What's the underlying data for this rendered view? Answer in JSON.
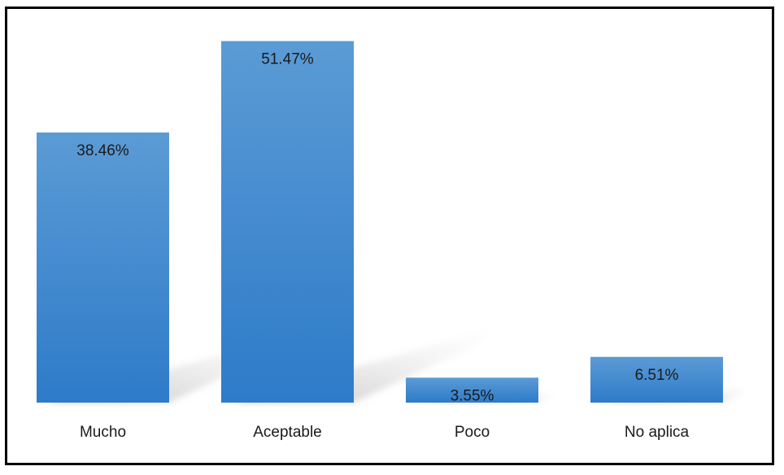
{
  "chart_data": {
    "type": "bar",
    "categories": [
      "Mucho",
      "Aceptable",
      "Poco",
      "No aplica"
    ],
    "values": [
      38.46,
      51.47,
      3.55,
      6.51
    ],
    "data_labels": [
      "38.46%",
      "51.47%",
      "3.55%",
      "6.51%"
    ],
    "ylim": [
      0,
      55
    ],
    "grid": false,
    "legend": "none",
    "bar_color_top": "#5b9bd5",
    "bar_color_bottom": "#2e7bc9"
  }
}
